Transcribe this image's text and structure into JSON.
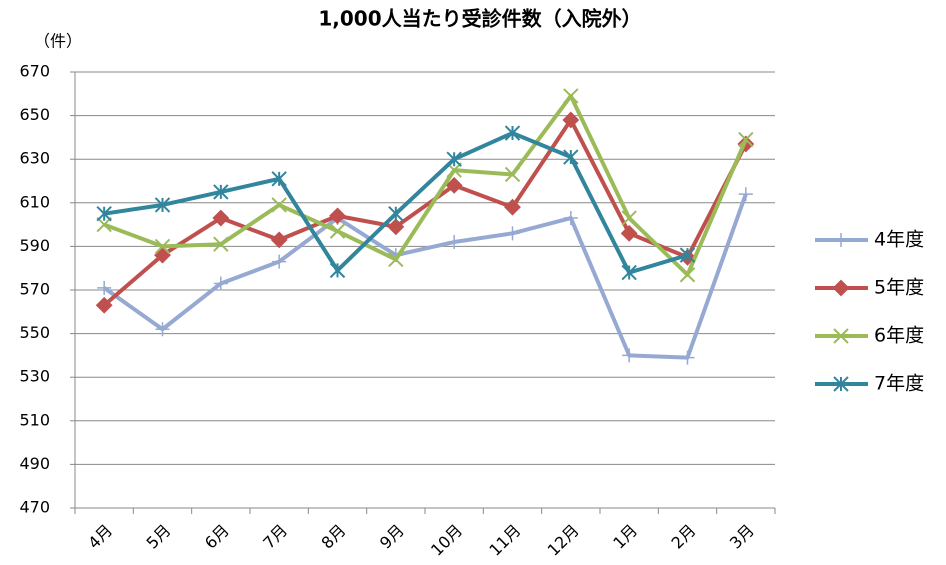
{
  "chart_data": {
    "type": "line",
    "title": "1,000人当たり受診件数（入院外）",
    "ylabel": "（件）",
    "categories": [
      "4月",
      "5月",
      "6月",
      "7月",
      "8月",
      "9月",
      "10月",
      "11月",
      "12月",
      "1月",
      "2月",
      "3月"
    ],
    "series": [
      {
        "name": "4年度",
        "color": "#95a9d2",
        "marker": "plus",
        "values": [
          571,
          552,
          573,
          583,
          603,
          586,
          592,
          596,
          603,
          540,
          539,
          614
        ]
      },
      {
        "name": "5年度",
        "color": "#c0504d",
        "marker": "diamond",
        "values": [
          563,
          586,
          603,
          593,
          604,
          599,
          618,
          608,
          648,
          596,
          585,
          637
        ]
      },
      {
        "name": "6年度",
        "color": "#9bbb59",
        "marker": "x",
        "values": [
          600,
          590,
          591,
          609,
          597,
          584,
          625,
          623,
          659,
          603,
          577,
          639
        ]
      },
      {
        "name": "7年度",
        "color": "#31859c",
        "marker": "star",
        "values": [
          605,
          609,
          615,
          621,
          579,
          605,
          630,
          642,
          631,
          578,
          586,
          null
        ]
      }
    ],
    "ylim": [
      470,
      670
    ],
    "yticks": [
      470,
      490,
      510,
      530,
      550,
      570,
      590,
      610,
      630,
      650,
      670
    ],
    "grid": true,
    "legend": "right"
  }
}
